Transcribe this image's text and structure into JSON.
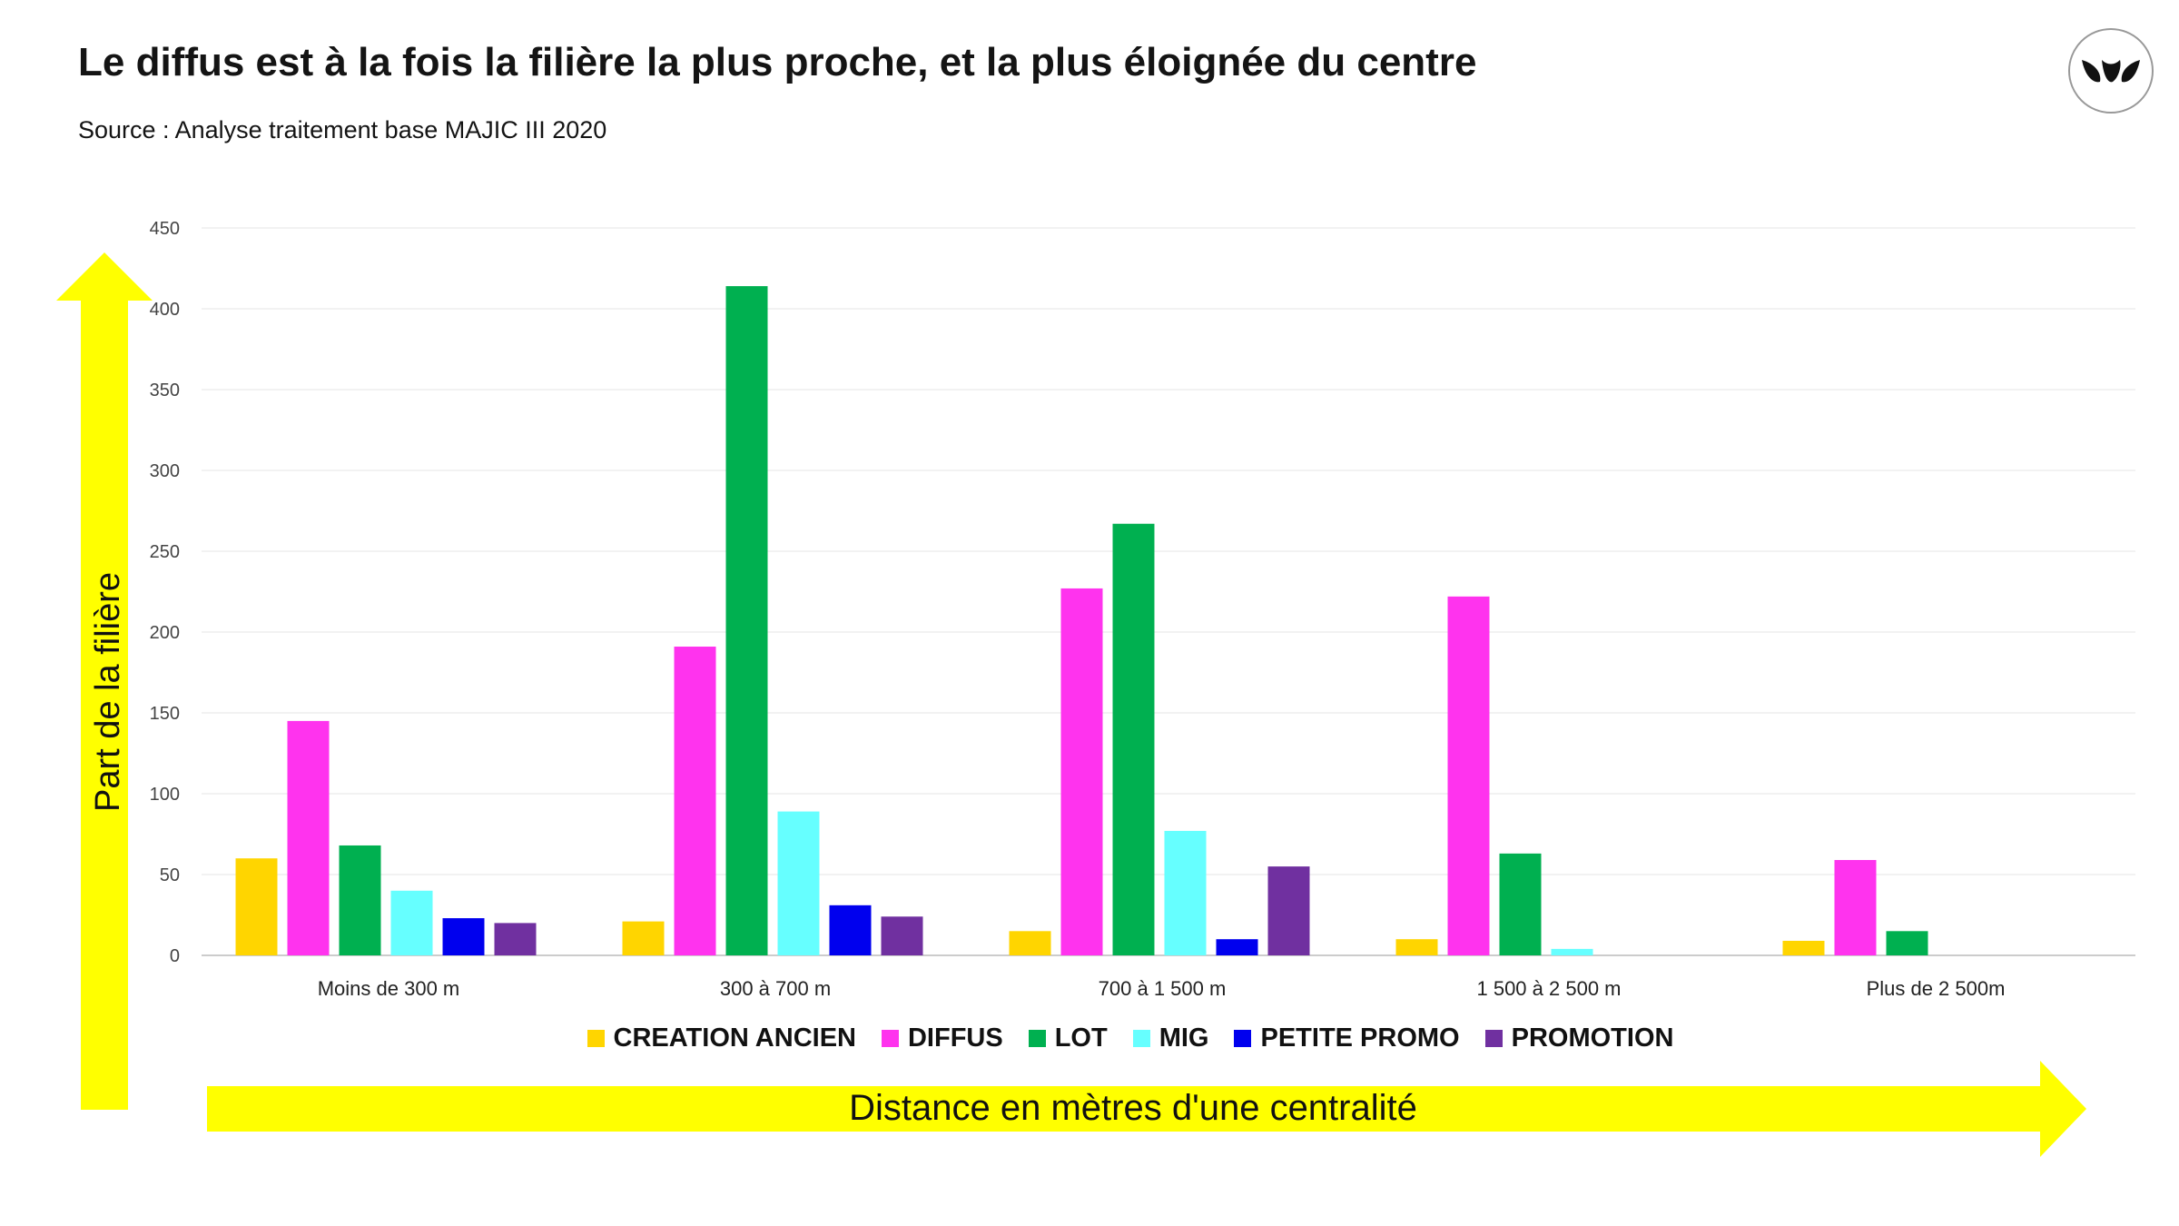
{
  "header": {
    "title": "Le diffus est à la fois la filière la plus proche, et la plus éloignée du centre",
    "source": "Source : Analyse traitement base MAJIC III 2020"
  },
  "logo": {
    "icon": "leaf-logo-icon",
    "color": "#111111"
  },
  "arrows": {
    "color": "#ffff00"
  },
  "chart_data": {
    "type": "bar",
    "title": "",
    "xlabel": "Distance en mètres d'une centralité",
    "ylabel": "Part de la filière",
    "ylim": [
      0,
      450
    ],
    "yticks": [
      0,
      50,
      100,
      150,
      200,
      250,
      300,
      350,
      400,
      450
    ],
    "grid": true,
    "legend_position": "bottom",
    "categories": [
      "Moins de 300 m",
      "300 à 700 m",
      "700 à 1 500 m",
      "1 500 à 2 500 m",
      "Plus de 2 500m"
    ],
    "series": [
      {
        "name": "CREATION ANCIEN",
        "color": "#ffd500",
        "values": [
          60,
          21,
          15,
          10,
          9
        ]
      },
      {
        "name": "DIFFUS",
        "color": "#ff33ee",
        "values": [
          145,
          191,
          227,
          222,
          59
        ]
      },
      {
        "name": "LOT",
        "color": "#00b050",
        "values": [
          68,
          414,
          267,
          63,
          15
        ]
      },
      {
        "name": "MIG",
        "color": "#66ffff",
        "values": [
          40,
          89,
          77,
          4,
          0
        ]
      },
      {
        "name": "PETITE PROMO",
        "color": "#0000ee",
        "values": [
          23,
          31,
          10,
          0,
          0
        ]
      },
      {
        "name": "PROMOTION",
        "color": "#7030a0",
        "values": [
          20,
          24,
          55,
          0,
          0
        ]
      }
    ]
  }
}
